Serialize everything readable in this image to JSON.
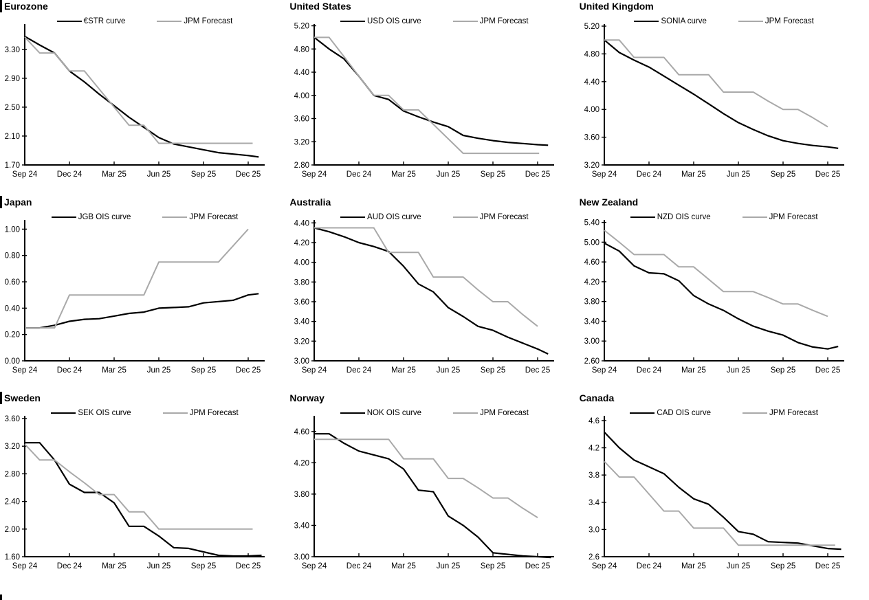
{
  "x_axis": {
    "tick_labels": [
      "Sep 24",
      "Dec 24",
      "Mar 25",
      "Jun 25",
      "Sep 25",
      "Dec 25"
    ],
    "tick_months": [
      0,
      3,
      6,
      9,
      12,
      15
    ]
  },
  "colors": {
    "curve": "#000000",
    "forecast": "#a9a9a9",
    "axis": "#000000"
  },
  "legend_position": "top-center",
  "chart_data": [
    {
      "type": "line",
      "title": "Eurozone",
      "section_bar": true,
      "xlabel": "",
      "ylabel": "",
      "grid": false,
      "ylim": [
        1.7,
        3.65
      ],
      "yticks": [
        "1.70",
        "2.10",
        "2.50",
        "2.90",
        "3.30"
      ],
      "series": [
        {
          "name": "€STR curve",
          "color": "#000000",
          "stroke_width": 2.2,
          "x": [
            0,
            1,
            2,
            3,
            4,
            5,
            6,
            7,
            8,
            9,
            10,
            11,
            12,
            13,
            14,
            15,
            15.7
          ],
          "values": [
            3.48,
            3.36,
            3.25,
            3.0,
            2.85,
            2.68,
            2.52,
            2.36,
            2.22,
            2.08,
            1.99,
            1.95,
            1.91,
            1.87,
            1.85,
            1.83,
            1.81
          ]
        },
        {
          "name": "JPM Forecast",
          "color": "#a9a9a9",
          "stroke_width": 2,
          "x": [
            0,
            1,
            2,
            3,
            4,
            5,
            6,
            7,
            8,
            9,
            10,
            11,
            12,
            13,
            14,
            15,
            15.3
          ],
          "values": [
            3.47,
            3.25,
            3.25,
            3.0,
            3.0,
            2.75,
            2.5,
            2.25,
            2.25,
            2.0,
            2.0,
            2.0,
            2.0,
            2.0,
            2.0,
            2.0,
            2.0
          ]
        }
      ]
    },
    {
      "type": "line",
      "title": "United States",
      "section_bar": false,
      "xlabel": "",
      "ylabel": "",
      "grid": false,
      "ylim": [
        2.8,
        5.23
      ],
      "yticks": [
        "2.80",
        "3.20",
        "3.60",
        "4.00",
        "4.40",
        "4.80",
        "5.20"
      ],
      "series": [
        {
          "name": "USD OIS curve",
          "color": "#000000",
          "stroke_width": 2.2,
          "x": [
            0,
            1,
            2,
            3,
            4,
            5,
            6,
            7,
            8,
            9,
            10,
            11,
            12,
            13,
            14,
            15,
            15.7
          ],
          "values": [
            5.0,
            4.8,
            4.63,
            4.33,
            4.0,
            3.93,
            3.73,
            3.63,
            3.54,
            3.46,
            3.31,
            3.26,
            3.22,
            3.19,
            3.17,
            3.15,
            3.14
          ]
        },
        {
          "name": "JPM Forecast",
          "color": "#a9a9a9",
          "stroke_width": 2,
          "x": [
            0,
            1,
            2,
            3,
            4,
            5,
            6,
            7,
            8,
            9,
            10,
            11,
            12,
            13,
            14,
            15,
            15.1
          ],
          "values": [
            5.0,
            5.0,
            4.67,
            4.33,
            4.0,
            4.0,
            3.75,
            3.75,
            3.5,
            3.25,
            3.0,
            3.0,
            3.0,
            3.0,
            3.0,
            3.0,
            3.0
          ]
        }
      ]
    },
    {
      "type": "line",
      "title": "United Kingdom",
      "section_bar": false,
      "xlabel": "",
      "ylabel": "",
      "grid": false,
      "ylim": [
        3.2,
        5.23
      ],
      "yticks": [
        "3.20",
        "3.60",
        "4.00",
        "4.40",
        "4.80",
        "5.20"
      ],
      "series": [
        {
          "name": "SONIA curve",
          "color": "#000000",
          "stroke_width": 2.2,
          "x": [
            0,
            1,
            2,
            3,
            4,
            5,
            6,
            7,
            8,
            9,
            10,
            11,
            12,
            13,
            14,
            15,
            15.7
          ],
          "values": [
            5.0,
            4.82,
            4.71,
            4.61,
            4.48,
            4.35,
            4.22,
            4.08,
            3.94,
            3.81,
            3.71,
            3.62,
            3.55,
            3.51,
            3.48,
            3.46,
            3.44
          ]
        },
        {
          "name": "JPM Forecast",
          "color": "#a9a9a9",
          "stroke_width": 2,
          "x": [
            0,
            1,
            2,
            3,
            4,
            5,
            6,
            7,
            8,
            9,
            10,
            11,
            12,
            13,
            14,
            15
          ],
          "values": [
            5.0,
            5.0,
            4.75,
            4.75,
            4.75,
            4.5,
            4.5,
            4.5,
            4.25,
            4.25,
            4.25,
            4.12,
            4.0,
            4.0,
            3.88,
            3.75
          ]
        }
      ]
    },
    {
      "type": "line",
      "title": "Japan",
      "section_bar": true,
      "xlabel": "",
      "ylabel": "",
      "grid": false,
      "ylim": [
        0.0,
        1.07
      ],
      "yticks": [
        "0.00",
        "0.20",
        "0.40",
        "0.60",
        "0.80",
        "1.00"
      ],
      "series": [
        {
          "name": "JGB OIS curve",
          "color": "#000000",
          "stroke_width": 2.2,
          "x": [
            0,
            1,
            2,
            3,
            4,
            5,
            6,
            7,
            8,
            9,
            10,
            11,
            12,
            13,
            14,
            15,
            15.7
          ],
          "values": [
            0.25,
            0.25,
            0.27,
            0.3,
            0.315,
            0.32,
            0.34,
            0.36,
            0.37,
            0.4,
            0.405,
            0.41,
            0.44,
            0.45,
            0.46,
            0.5,
            0.51
          ]
        },
        {
          "name": "JPM Forecast",
          "color": "#a9a9a9",
          "stroke_width": 2,
          "x": [
            0,
            1,
            2,
            3,
            4,
            5,
            6,
            7,
            8,
            9,
            10,
            11,
            12,
            13,
            14,
            15
          ],
          "values": [
            0.25,
            0.25,
            0.25,
            0.5,
            0.5,
            0.5,
            0.5,
            0.5,
            0.5,
            0.75,
            0.75,
            0.75,
            0.75,
            0.75,
            0.875,
            1.0
          ]
        }
      ]
    },
    {
      "type": "line",
      "title": "Australia",
      "section_bar": false,
      "xlabel": "",
      "ylabel": "",
      "grid": false,
      "ylim": [
        3.0,
        4.43
      ],
      "yticks": [
        "3.00",
        "3.20",
        "3.40",
        "3.60",
        "3.80",
        "4.00",
        "4.20",
        "4.40"
      ],
      "series": [
        {
          "name": "AUD OIS curve",
          "color": "#000000",
          "stroke_width": 2.2,
          "x": [
            0,
            1,
            2,
            3,
            4,
            5,
            6,
            7,
            8,
            9,
            10,
            11,
            12,
            13,
            14,
            15,
            15.7
          ],
          "values": [
            4.35,
            4.31,
            4.26,
            4.2,
            4.16,
            4.11,
            3.96,
            3.78,
            3.7,
            3.54,
            3.45,
            3.35,
            3.31,
            3.24,
            3.18,
            3.12,
            3.07
          ]
        },
        {
          "name": "JPM Forecast",
          "color": "#a9a9a9",
          "stroke_width": 2,
          "x": [
            0,
            1,
            2,
            3,
            4,
            5,
            6,
            7,
            8,
            9,
            10,
            11,
            12,
            13,
            14,
            15
          ],
          "values": [
            4.35,
            4.35,
            4.35,
            4.35,
            4.35,
            4.1,
            4.1,
            4.1,
            3.85,
            3.85,
            3.85,
            3.72,
            3.6,
            3.6,
            3.47,
            3.35
          ]
        }
      ]
    },
    {
      "type": "line",
      "title": "New Zealand",
      "section_bar": false,
      "xlabel": "",
      "ylabel": "",
      "grid": false,
      "ylim": [
        2.6,
        5.45
      ],
      "yticks": [
        "2.60",
        "3.00",
        "3.40",
        "3.80",
        "4.20",
        "4.60",
        "5.00",
        "5.40"
      ],
      "series": [
        {
          "name": "NZD OIS curve",
          "color": "#000000",
          "stroke_width": 2.2,
          "x": [
            0,
            1,
            2,
            3,
            4,
            5,
            6,
            7,
            8,
            9,
            10,
            11,
            12,
            13,
            14,
            15,
            15.7
          ],
          "values": [
            4.98,
            4.82,
            4.52,
            4.38,
            4.36,
            4.22,
            3.92,
            3.75,
            3.62,
            3.45,
            3.3,
            3.2,
            3.12,
            2.97,
            2.88,
            2.84,
            2.89
          ]
        },
        {
          "name": "JPM Forecast",
          "color": "#a9a9a9",
          "stroke_width": 2,
          "x": [
            0,
            1,
            2,
            3,
            4,
            5,
            6,
            7,
            8,
            9,
            10,
            11,
            12,
            13,
            14,
            15
          ],
          "values": [
            5.24,
            5.0,
            4.75,
            4.75,
            4.75,
            4.5,
            4.5,
            4.25,
            4.0,
            4.0,
            4.0,
            3.88,
            3.75,
            3.75,
            3.62,
            3.5
          ]
        }
      ]
    },
    {
      "type": "line",
      "title": "Sweden",
      "section_bar": true,
      "xlabel": "",
      "ylabel": "",
      "grid": false,
      "ylim": [
        1.6,
        3.64
      ],
      "yticks": [
        "1.60",
        "2.00",
        "2.40",
        "2.80",
        "3.20",
        "3.60"
      ],
      "series": [
        {
          "name": "SEK OIS curve",
          "color": "#000000",
          "stroke_width": 2.2,
          "x": [
            0,
            1,
            2,
            3,
            4,
            5,
            6,
            7,
            8,
            9,
            10,
            11,
            12,
            13,
            14,
            15,
            15.9
          ],
          "values": [
            3.25,
            3.25,
            3.0,
            2.65,
            2.53,
            2.53,
            2.38,
            2.04,
            2.04,
            1.9,
            1.73,
            1.72,
            1.67,
            1.62,
            1.61,
            1.61,
            1.62
          ]
        },
        {
          "name": "JPM Forecast",
          "color": "#a9a9a9",
          "stroke_width": 2,
          "x": [
            0,
            1,
            2,
            3,
            4,
            5,
            6,
            7,
            8,
            9,
            10,
            11,
            12,
            13,
            14,
            15,
            15.3
          ],
          "values": [
            3.23,
            3.0,
            3.0,
            2.83,
            2.67,
            2.5,
            2.5,
            2.25,
            2.25,
            2.0,
            2.0,
            2.0,
            2.0,
            2.0,
            2.0,
            2.0,
            2.0
          ]
        }
      ]
    },
    {
      "type": "line",
      "title": "Norway",
      "section_bar": false,
      "xlabel": "",
      "ylabel": "",
      "grid": false,
      "ylim": [
        3.0,
        4.8
      ],
      "yticks": [
        "3.00",
        "3.40",
        "3.80",
        "4.20",
        "4.60"
      ],
      "series": [
        {
          "name": "NOK OIS curve",
          "color": "#000000",
          "stroke_width": 2.2,
          "x": [
            0,
            1,
            2,
            3,
            4,
            5,
            6,
            7,
            8,
            9,
            10,
            11,
            12,
            13,
            14,
            15,
            15.9
          ],
          "values": [
            4.57,
            4.57,
            4.45,
            4.35,
            4.3,
            4.25,
            4.12,
            3.85,
            3.83,
            3.52,
            3.4,
            3.25,
            3.05,
            3.03,
            3.01,
            3.0,
            2.99
          ]
        },
        {
          "name": "JPM Forecast",
          "color": "#a9a9a9",
          "stroke_width": 2,
          "x": [
            0,
            1,
            2,
            3,
            4,
            5,
            6,
            7,
            8,
            9,
            10,
            11,
            12,
            13,
            14,
            15
          ],
          "values": [
            4.5,
            4.5,
            4.5,
            4.5,
            4.5,
            4.5,
            4.25,
            4.25,
            4.25,
            4.0,
            4.0,
            3.88,
            3.75,
            3.75,
            3.62,
            3.5
          ]
        }
      ]
    },
    {
      "type": "line",
      "title": "Canada",
      "section_bar": false,
      "xlabel": "",
      "ylabel": "",
      "grid": false,
      "ylim": [
        2.6,
        4.67
      ],
      "yticks": [
        "2.6",
        "3.0",
        "3.4",
        "3.8",
        "4.2",
        "4.6"
      ],
      "series": [
        {
          "name": "CAD OIS curve",
          "color": "#000000",
          "stroke_width": 2.2,
          "x": [
            0,
            1,
            2,
            3,
            4,
            5,
            6,
            7,
            8,
            9,
            10,
            11,
            12,
            13,
            14,
            15,
            15.9
          ],
          "values": [
            4.43,
            4.2,
            4.02,
            3.92,
            3.82,
            3.62,
            3.45,
            3.37,
            3.18,
            2.97,
            2.93,
            2.82,
            2.81,
            2.8,
            2.76,
            2.72,
            2.71
          ]
        },
        {
          "name": "JPM Forecast",
          "color": "#a9a9a9",
          "stroke_width": 2,
          "x": [
            0,
            1,
            2,
            3,
            4,
            5,
            6,
            7,
            8,
            9,
            10,
            11,
            12,
            13,
            14,
            15,
            15.5
          ],
          "values": [
            4.0,
            3.77,
            3.77,
            3.52,
            3.27,
            3.27,
            3.02,
            3.02,
            3.02,
            2.77,
            2.77,
            2.77,
            2.77,
            2.77,
            2.77,
            2.77,
            2.77
          ]
        }
      ]
    }
  ]
}
